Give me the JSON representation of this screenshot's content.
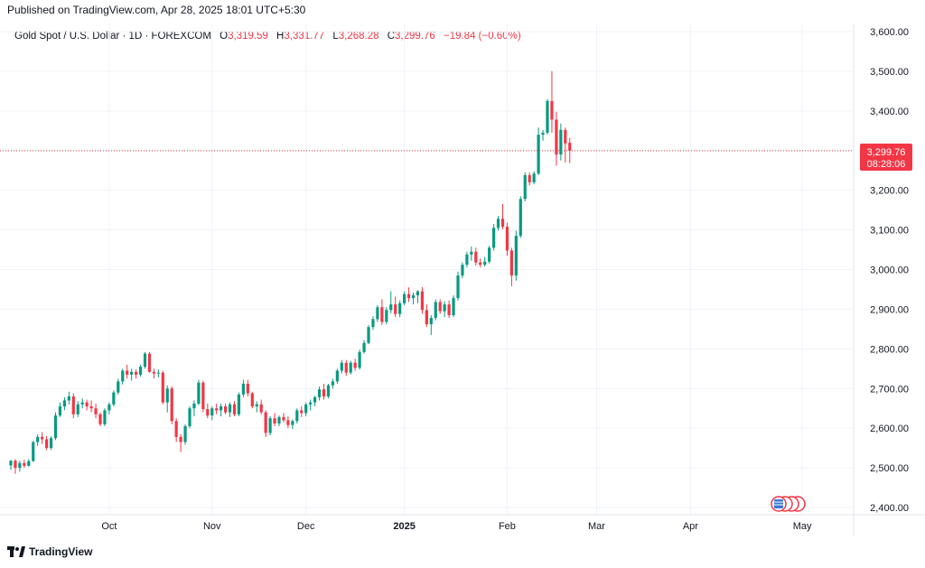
{
  "header": {
    "published": "Published on TradingView.com, Apr 28, 2025 18:01 UTC+5:30"
  },
  "legend": {
    "symbol": "Gold Spot / U.S. Dollar · 1D · FOREXCOM",
    "o_label": "O",
    "o_value": "3,319.59",
    "h_label": "H",
    "h_value": "3,331.77",
    "l_label": "L",
    "l_value": "3,268.28",
    "c_label": "C",
    "c_value": "3,299.76",
    "change": "−19.84 (−0.60%)"
  },
  "price_tag": {
    "price": "3,299.76",
    "countdown": "08:28:06"
  },
  "footer": {
    "brand": "TradingView"
  },
  "colors": {
    "up": "#089981",
    "down": "#f23645",
    "grid": "#f0f3fa",
    "last_price_line": "#f23645"
  },
  "chart_data": {
    "type": "candlestick",
    "y_ticks": [
      "2,400.00",
      "2,500.00",
      "2,600.00",
      "2,700.00",
      "2,800.00",
      "2,900.00",
      "3,000.00",
      "3,100.00",
      "3,200.00",
      "3,300.00",
      "3,400.00",
      "3,500.00",
      "3,600.00"
    ],
    "y_tick_values": [
      2400,
      2500,
      2600,
      2700,
      2800,
      2900,
      3000,
      3100,
      3200,
      3300,
      3400,
      3500,
      3600
    ],
    "ylim": [
      2380,
      3620
    ],
    "x_ticks": [
      {
        "label": "Oct",
        "bar": 22,
        "bold": false
      },
      {
        "label": "Nov",
        "bar": 45,
        "bold": false
      },
      {
        "label": "Dec",
        "bar": 66,
        "bold": false
      },
      {
        "label": "2025",
        "bar": 88,
        "bold": true
      },
      {
        "label": "Feb",
        "bar": 111,
        "bold": false
      },
      {
        "label": "Mar",
        "bar": 131,
        "bold": false
      },
      {
        "label": "Apr",
        "bar": 152,
        "bold": false
      },
      {
        "label": "May",
        "bar": 177,
        "bold": false
      }
    ],
    "last_close": 3299.76,
    "candles": [
      [
        2506,
        2520,
        2495,
        2518
      ],
      [
        2518,
        2522,
        2485,
        2500
      ],
      [
        2500,
        2518,
        2490,
        2512
      ],
      [
        2512,
        2520,
        2500,
        2505
      ],
      [
        2505,
        2522,
        2503,
        2517
      ],
      [
        2517,
        2568,
        2515,
        2565
      ],
      [
        2565,
        2585,
        2555,
        2578
      ],
      [
        2578,
        2590,
        2560,
        2572
      ],
      [
        2572,
        2580,
        2545,
        2550
      ],
      [
        2550,
        2580,
        2545,
        2575
      ],
      [
        2575,
        2640,
        2570,
        2632
      ],
      [
        2632,
        2665,
        2628,
        2655
      ],
      [
        2655,
        2678,
        2645,
        2670
      ],
      [
        2670,
        2692,
        2660,
        2680
      ],
      [
        2680,
        2688,
        2625,
        2635
      ],
      [
        2635,
        2668,
        2628,
        2660
      ],
      [
        2660,
        2675,
        2650,
        2665
      ],
      [
        2665,
        2672,
        2645,
        2655
      ],
      [
        2655,
        2670,
        2640,
        2650
      ],
      [
        2650,
        2662,
        2625,
        2635
      ],
      [
        2635,
        2640,
        2605,
        2610
      ],
      [
        2610,
        2650,
        2605,
        2645
      ],
      [
        2645,
        2665,
        2635,
        2660
      ],
      [
        2660,
        2695,
        2655,
        2690
      ],
      [
        2690,
        2725,
        2685,
        2718
      ],
      [
        2718,
        2750,
        2710,
        2745
      ],
      [
        2745,
        2760,
        2725,
        2735
      ],
      [
        2735,
        2750,
        2720,
        2742
      ],
      [
        2742,
        2748,
        2725,
        2735
      ],
      [
        2735,
        2760,
        2730,
        2755
      ],
      [
        2755,
        2792,
        2750,
        2788
      ],
      [
        2788,
        2792,
        2740,
        2742
      ],
      [
        2742,
        2750,
        2725,
        2738
      ],
      [
        2738,
        2748,
        2728,
        2740
      ],
      [
        2740,
        2745,
        2660,
        2665
      ],
      [
        2665,
        2708,
        2640,
        2700
      ],
      [
        2700,
        2705,
        2610,
        2618
      ],
      [
        2618,
        2625,
        2565,
        2578
      ],
      [
        2578,
        2585,
        2540,
        2565
      ],
      [
        2565,
        2610,
        2558,
        2605
      ],
      [
        2605,
        2655,
        2600,
        2650
      ],
      [
        2650,
        2670,
        2630,
        2662
      ],
      [
        2662,
        2722,
        2658,
        2715
      ],
      [
        2715,
        2720,
        2640,
        2648
      ],
      [
        2648,
        2662,
        2625,
        2632
      ],
      [
        2632,
        2655,
        2620,
        2650
      ],
      [
        2650,
        2662,
        2635,
        2645
      ],
      [
        2645,
        2662,
        2630,
        2655
      ],
      [
        2655,
        2662,
        2635,
        2640
      ],
      [
        2640,
        2665,
        2628,
        2660
      ],
      [
        2660,
        2668,
        2630,
        2635
      ],
      [
        2635,
        2690,
        2630,
        2685
      ],
      [
        2685,
        2722,
        2678,
        2712
      ],
      [
        2712,
        2722,
        2680,
        2688
      ],
      [
        2688,
        2692,
        2650,
        2655
      ],
      [
        2655,
        2668,
        2640,
        2660
      ],
      [
        2660,
        2672,
        2635,
        2640
      ],
      [
        2640,
        2645,
        2578,
        2588
      ],
      [
        2588,
        2630,
        2582,
        2625
      ],
      [
        2625,
        2638,
        2605,
        2612
      ],
      [
        2612,
        2632,
        2605,
        2628
      ],
      [
        2628,
        2638,
        2615,
        2620
      ],
      [
        2620,
        2630,
        2600,
        2608
      ],
      [
        2608,
        2622,
        2598,
        2618
      ],
      [
        2618,
        2650,
        2612,
        2645
      ],
      [
        2645,
        2655,
        2628,
        2638
      ],
      [
        2638,
        2665,
        2630,
        2660
      ],
      [
        2660,
        2672,
        2645,
        2665
      ],
      [
        2665,
        2682,
        2655,
        2678
      ],
      [
        2678,
        2705,
        2670,
        2698
      ],
      [
        2698,
        2712,
        2672,
        2680
      ],
      [
        2680,
        2712,
        2675,
        2708
      ],
      [
        2708,
        2725,
        2700,
        2718
      ],
      [
        2718,
        2750,
        2712,
        2745
      ],
      [
        2745,
        2772,
        2738,
        2765
      ],
      [
        2765,
        2772,
        2732,
        2740
      ],
      [
        2740,
        2770,
        2735,
        2765
      ],
      [
        2765,
        2775,
        2745,
        2752
      ],
      [
        2752,
        2798,
        2748,
        2792
      ],
      [
        2792,
        2822,
        2788,
        2815
      ],
      [
        2815,
        2860,
        2812,
        2855
      ],
      [
        2855,
        2882,
        2848,
        2875
      ],
      [
        2875,
        2910,
        2868,
        2905
      ],
      [
        2905,
        2925,
        2860,
        2868
      ],
      [
        2868,
        2905,
        2862,
        2898
      ],
      [
        2898,
        2945,
        2890,
        2912
      ],
      [
        2912,
        2932,
        2880,
        2888
      ],
      [
        2888,
        2922,
        2880,
        2915
      ],
      [
        2915,
        2945,
        2910,
        2938
      ],
      [
        2938,
        2955,
        2918,
        2928
      ],
      [
        2928,
        2942,
        2912,
        2935
      ],
      [
        2935,
        2948,
        2915,
        2945
      ],
      [
        2945,
        2956,
        2888,
        2898
      ],
      [
        2898,
        2912,
        2855,
        2862
      ],
      [
        2862,
        2885,
        2835,
        2878
      ],
      [
        2878,
        2925,
        2872,
        2918
      ],
      [
        2918,
        2925,
        2888,
        2895
      ],
      [
        2895,
        2920,
        2880,
        2912
      ],
      [
        2912,
        2922,
        2878,
        2885
      ],
      [
        2885,
        2935,
        2880,
        2928
      ],
      [
        2928,
        2995,
        2922,
        2985
      ],
      [
        2985,
        3018,
        2978,
        3012
      ],
      [
        3012,
        3045,
        3005,
        3038
      ],
      [
        3038,
        3058,
        3022,
        3045
      ],
      [
        3045,
        3055,
        3010,
        3018
      ],
      [
        3018,
        3028,
        3005,
        3012
      ],
      [
        3012,
        3032,
        3008,
        3020
      ],
      [
        3020,
        3060,
        3015,
        3055
      ],
      [
        3055,
        3115,
        3048,
        3105
      ],
      [
        3105,
        3135,
        3098,
        3128
      ],
      [
        3128,
        3165,
        3102,
        3108
      ],
      [
        3108,
        3118,
        3035,
        3048
      ],
      [
        3048,
        3055,
        2958,
        2985
      ],
      [
        2985,
        3098,
        2972,
        3085
      ],
      [
        3085,
        3185,
        3080,
        3178
      ],
      [
        3178,
        3245,
        3172,
        3238
      ],
      [
        3238,
        3245,
        3212,
        3220
      ],
      [
        3220,
        3248,
        3215,
        3242
      ],
      [
        3242,
        3358,
        3238,
        3340
      ],
      [
        3340,
        3352,
        3325,
        3345
      ],
      [
        3345,
        3430,
        3340,
        3425
      ],
      [
        3425,
        3500,
        3345,
        3378
      ],
      [
        3378,
        3398,
        3262,
        3290
      ],
      [
        3290,
        3368,
        3275,
        3352
      ],
      [
        3352,
        3358,
        3270,
        3318
      ],
      [
        3319.59,
        3331.77,
        3268.28,
        3299.76
      ]
    ]
  }
}
